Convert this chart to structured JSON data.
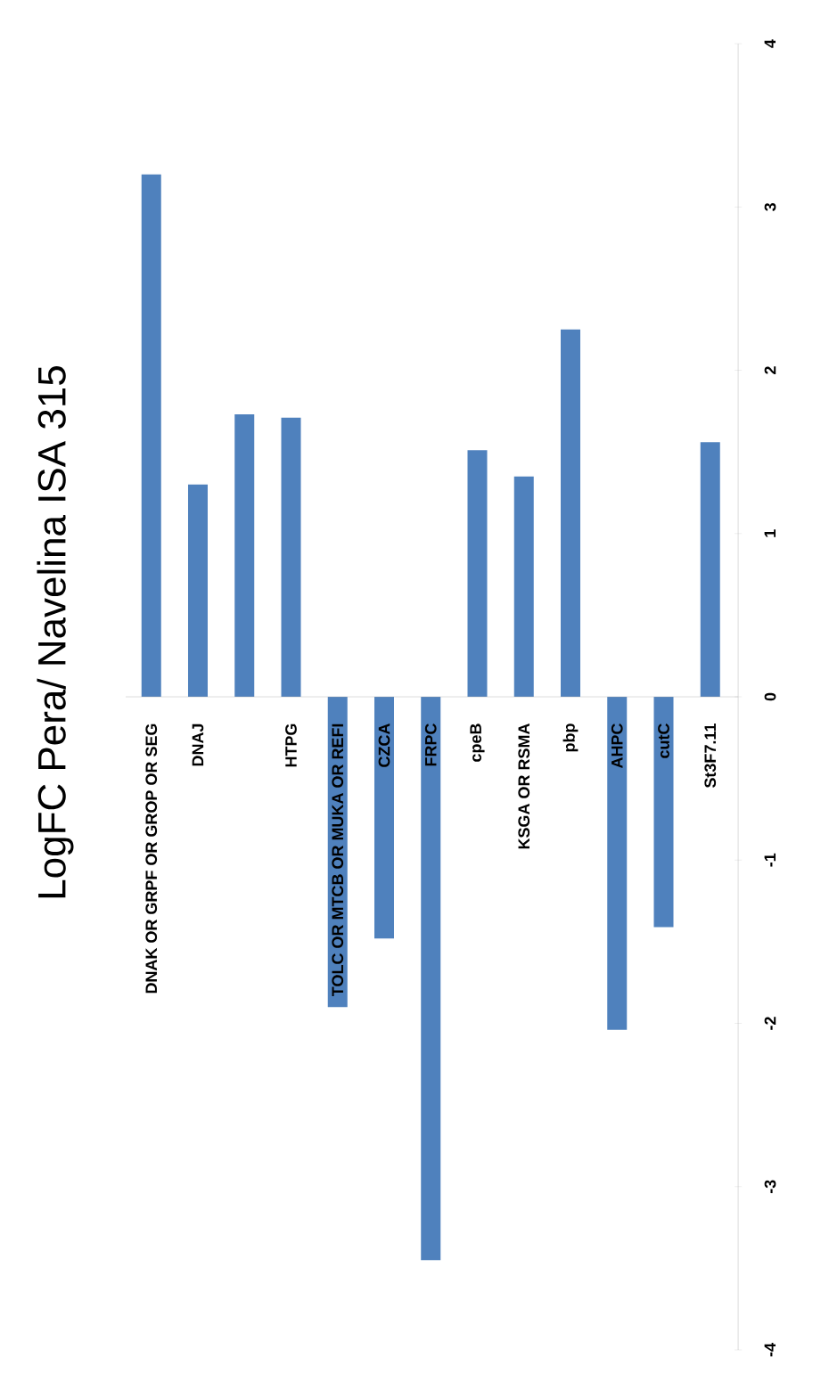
{
  "chart_data": {
    "type": "bar",
    "title": "LogFC Pera/ Navelina ISA 315",
    "categories": [
      "DNAK OR GRPF OR GROP OR SEG",
      "DNAJ",
      null,
      "HTPG",
      "TOLC OR MTCB OR MUKA OR REFI",
      "CZCA",
      "FRPC",
      "cpeB",
      "KSGA OR RSMA",
      "pbp",
      "AHPC",
      "cutC",
      "St3F7.11"
    ],
    "values": [
      3.2,
      1.3,
      1.73,
      1.71,
      -1.9,
      -1.48,
      -3.45,
      1.51,
      1.35,
      2.25,
      -2.04,
      -1.41,
      1.56
    ],
    "color": "#4f81bd",
    "ylim": [
      -4,
      4
    ],
    "yticks": [
      -4,
      -3,
      -2,
      -1,
      0,
      1,
      2,
      3,
      4
    ]
  }
}
